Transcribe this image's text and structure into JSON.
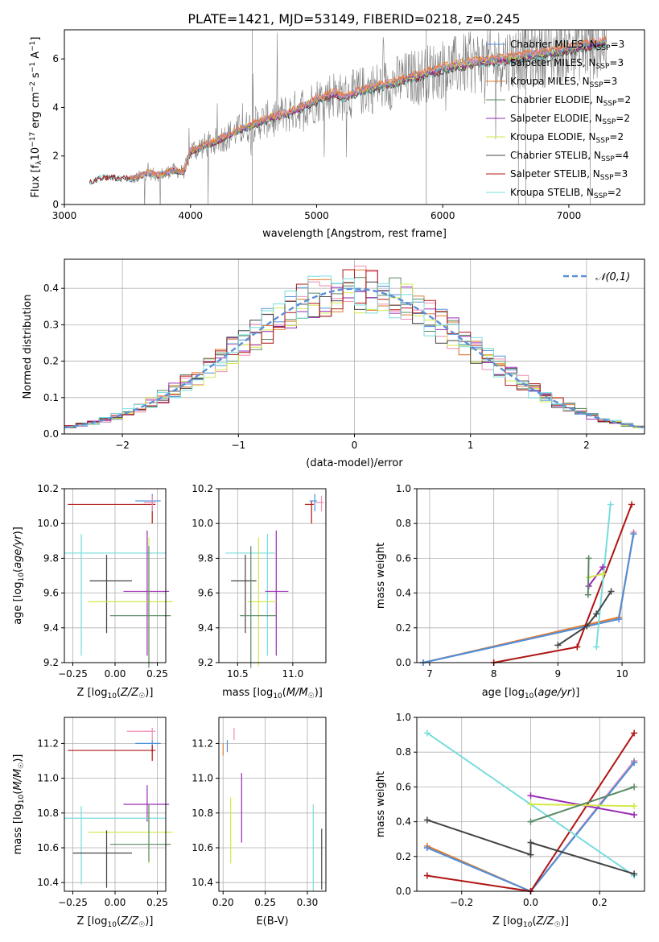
{
  "title": "PLATE=1421, MJD=53149, FIBERID=0218, z=0.245",
  "colors": {
    "chabrier_miles": "#4a90d9",
    "salpeter_miles": "#f08cb4",
    "kroupa_miles": "#e07b2e",
    "chabrier_elodie": "#5a8a64",
    "salpeter_elodie": "#9a2ab4",
    "kroupa_elodie": "#d4e84a",
    "chabrier_stelib": "#444444",
    "salpeter_stelib": "#b01414",
    "kroupa_stelib": "#78dcdc",
    "data": "#808080",
    "normal": "#5b8fd6"
  },
  "chart_data": [
    {
      "id": "spectrum",
      "type": "line",
      "xlabel": "wavelength [Angstrom, rest frame]",
      "ylabel": "Flux [f_λ 10^-17 erg cm^-2 s^-1 A^-1]",
      "xlim": [
        3000,
        7600
      ],
      "ylim": [
        0,
        7.2
      ],
      "xticks": [
        "3000",
        "4000",
        "5000",
        "6000",
        "7000"
      ],
      "yticks": [
        "0",
        "2",
        "4",
        "6"
      ],
      "legend_position": "upper right",
      "legend": [
        {
          "key": "chabrier_miles",
          "label": "Chabrier MILES, N",
          "sub": "SSP",
          "suffix": "=3"
        },
        {
          "key": "salpeter_miles",
          "label": "Salpeter MILES, N",
          "sub": "SSP",
          "suffix": "=3"
        },
        {
          "key": "kroupa_miles",
          "label": "Kroupa MILES, N",
          "sub": "SSP",
          "suffix": "=3"
        },
        {
          "key": "chabrier_elodie",
          "label": "Chabrier ELODIE, N",
          "sub": "SSP",
          "suffix": "=2"
        },
        {
          "key": "salpeter_elodie",
          "label": "Salpeter ELODIE, N",
          "sub": "SSP",
          "suffix": "=2"
        },
        {
          "key": "kroupa_elodie",
          "label": "Kroupa ELODIE, N",
          "sub": "SSP",
          "suffix": "=2"
        },
        {
          "key": "chabrier_stelib",
          "label": "Chabrier STELIB, N",
          "sub": "SSP",
          "suffix": "=4"
        },
        {
          "key": "salpeter_stelib",
          "label": "Salpeter STELIB, N",
          "sub": "SSP",
          "suffix": "=3"
        },
        {
          "key": "kroupa_stelib",
          "label": "Kroupa STELIB, N",
          "sub": "SSP",
          "suffix": "=2"
        }
      ],
      "model_continuum": [
        [
          3200,
          0.9
        ],
        [
          3300,
          1.15
        ],
        [
          3450,
          1.1
        ],
        [
          3550,
          1.05
        ],
        [
          3650,
          1.3
        ],
        [
          3750,
          1.2
        ],
        [
          3850,
          1.4
        ],
        [
          3950,
          1.35
        ],
        [
          4000,
          2.2
        ],
        [
          4200,
          2.6
        ],
        [
          4400,
          3.1
        ],
        [
          4600,
          3.5
        ],
        [
          4800,
          3.8
        ],
        [
          5000,
          4.3
        ],
        [
          5150,
          4.6
        ],
        [
          5200,
          4.4
        ],
        [
          5400,
          4.75
        ],
        [
          5600,
          5.0
        ],
        [
          5800,
          5.3
        ],
        [
          6000,
          5.6
        ],
        [
          6200,
          5.8
        ],
        [
          6500,
          6.0
        ],
        [
          6800,
          6.2
        ],
        [
          7000,
          6.4
        ],
        [
          7300,
          6.7
        ]
      ],
      "data_range": [
        3520,
        7300
      ]
    },
    {
      "id": "residuals",
      "type": "histogram",
      "xlabel": "(data-model)/error",
      "ylabel": "Normed distribution",
      "xlim": [
        -2.5,
        2.5
      ],
      "ylim": [
        0,
        0.48
      ],
      "xticks": [
        "−2",
        "−1",
        "0",
        "1",
        "2"
      ],
      "yticks": [
        "0.0",
        "0.1",
        "0.2",
        "0.3",
        "0.4"
      ],
      "legend_label": "𝒩(0,1)",
      "bin_width": 0.1
    },
    {
      "id": "age_vs_Z",
      "type": "errorbar",
      "xlabel": "Z [log10(Z/Z_sun)]",
      "ylabel": "age [log10(age/yr)]",
      "xlim": [
        -0.3,
        0.3
      ],
      "ylim": [
        9.2,
        10.2
      ],
      "xticks": [
        "−0.25",
        "0.00",
        "0.25"
      ],
      "yticks": [
        "9.2",
        "9.4",
        "9.6",
        "9.8",
        "10.0",
        "10.2"
      ],
      "points": [
        {
          "key": "salpeter_stelib",
          "x": 0.22,
          "xerr": [
            0.5,
            0.02
          ],
          "y": 10.11,
          "yerr": [
            0.11,
            0.02
          ]
        },
        {
          "key": "chabrier_miles",
          "x": 0.22,
          "xerr": [
            0.1,
            0.05
          ],
          "y": 10.13,
          "yerr": [
            0.06,
            0.04
          ]
        },
        {
          "key": "salpeter_miles",
          "x": 0.22,
          "xerr": [
            0.05,
            0.02
          ],
          "y": 10.12,
          "yerr": [
            0.05,
            0.04
          ]
        },
        {
          "key": "kroupa_stelib",
          "x": -0.2,
          "xerr": [
            0.1,
            0.5
          ],
          "y": 9.83,
          "yerr": [
            0.59,
            0.11
          ]
        },
        {
          "key": "chabrier_stelib",
          "x": -0.05,
          "xerr": [
            0.1,
            0.15
          ],
          "y": 9.67,
          "yerr": [
            0.3,
            0.15
          ]
        },
        {
          "key": "salpeter_elodie",
          "x": 0.19,
          "xerr": [
            0.14,
            0.13
          ],
          "y": 9.61,
          "yerr": [
            0.37,
            0.35
          ]
        },
        {
          "key": "kroupa_elodie",
          "x": 0.2,
          "xerr": [
            0.36,
            0.14
          ],
          "y": 9.55,
          "yerr": [
            0.37,
            0.37
          ]
        },
        {
          "key": "chabrier_elodie",
          "x": 0.2,
          "xerr": [
            0.23,
            0.13
          ],
          "y": 9.47,
          "yerr": [
            0.3,
            0.4
          ]
        }
      ]
    },
    {
      "id": "age_vs_mass",
      "type": "errorbar",
      "xlabel": "mass [log10(M/M_sun)]",
      "ylabel": "",
      "xlim": [
        10.33,
        11.3
      ],
      "ylim": [
        9.2,
        10.2
      ],
      "xticks": [
        "10.5",
        "11.0"
      ],
      "yticks": [
        "9.2",
        "9.4",
        "9.6",
        "9.8",
        "10.0",
        "10.2"
      ],
      "points": [
        {
          "key": "salpeter_stelib",
          "x": 11.17,
          "xerr": [
            0.06,
            0.02
          ],
          "y": 10.11,
          "yerr": [
            0.11,
            0.02
          ]
        },
        {
          "key": "chabrier_miles",
          "x": 11.2,
          "xerr": [
            0.05,
            0.02
          ],
          "y": 10.13,
          "yerr": [
            0.06,
            0.04
          ]
        },
        {
          "key": "salpeter_miles",
          "x": 11.26,
          "xerr": [
            0.05,
            0.02
          ],
          "y": 10.12,
          "yerr": [
            0.05,
            0.04
          ]
        },
        {
          "key": "kroupa_stelib",
          "x": 10.77,
          "xerr": [
            0.38,
            0.07
          ],
          "y": 9.83,
          "yerr": [
            0.59,
            0.11
          ]
        },
        {
          "key": "chabrier_stelib",
          "x": 10.57,
          "xerr": [
            0.13,
            0.1
          ],
          "y": 9.67,
          "yerr": [
            0.3,
            0.15
          ]
        },
        {
          "key": "salpeter_elodie",
          "x": 10.85,
          "xerr": [
            0.1,
            0.11
          ],
          "y": 9.61,
          "yerr": [
            0.37,
            0.35
          ]
        },
        {
          "key": "kroupa_elodie",
          "x": 10.69,
          "xerr": [
            0.1,
            0.16
          ],
          "y": 9.55,
          "yerr": [
            0.37,
            0.37
          ]
        },
        {
          "key": "chabrier_elodie",
          "x": 10.62,
          "xerr": [
            0.1,
            0.23
          ],
          "y": 9.47,
          "yerr": [
            0.3,
            0.4
          ]
        }
      ]
    },
    {
      "id": "weight_vs_age",
      "type": "line",
      "xlabel": "age [log10(age/yr)]",
      "ylabel": "mass weight",
      "xlim": [
        6.8,
        10.35
      ],
      "ylim": [
        0,
        1.0
      ],
      "xticks": [
        "7",
        "8",
        "9",
        "10"
      ],
      "yticks": [
        "0.0",
        "0.2",
        "0.4",
        "0.6",
        "0.8",
        "1.0"
      ],
      "series": [
        {
          "key": "kroupa_miles",
          "x": [
            6.9,
            9.95,
            10.18
          ],
          "y": [
            0.0,
            0.26,
            0.74
          ]
        },
        {
          "key": "salpeter_miles",
          "x": [
            6.9,
            9.95,
            10.18
          ],
          "y": [
            0.0,
            0.25,
            0.75
          ]
        },
        {
          "key": "chabrier_miles",
          "x": [
            6.9,
            9.95,
            10.18
          ],
          "y": [
            0.0,
            0.25,
            0.74
          ]
        },
        {
          "key": "salpeter_stelib",
          "x": [
            8.0,
            9.3,
            10.15
          ],
          "y": [
            0.0,
            0.09,
            0.91
          ]
        },
        {
          "key": "kroupa_stelib",
          "x": [
            9.6,
            9.82
          ],
          "y": [
            0.09,
            0.91
          ]
        },
        {
          "key": "chabrier_stelib",
          "x": [
            9.0,
            9.45,
            9.6,
            9.83
          ],
          "y": [
            0.1,
            0.21,
            0.28,
            0.41
          ]
        },
        {
          "key": "salpeter_elodie",
          "x": [
            9.48,
            9.7
          ],
          "y": [
            0.44,
            0.55
          ]
        },
        {
          "key": "kroupa_elodie",
          "x": [
            9.48,
            9.7
          ],
          "y": [
            0.49,
            0.51
          ]
        },
        {
          "key": "chabrier_elodie",
          "x": [
            9.47,
            9.48
          ],
          "y": [
            0.39,
            0.6
          ]
        }
      ]
    },
    {
      "id": "mass_vs_Z",
      "type": "errorbar",
      "xlabel": "Z [log10(Z/Z_sun)]",
      "ylabel": "mass [log10(M/M_sun)]",
      "xlim": [
        -0.3,
        0.3
      ],
      "ylim": [
        10.35,
        11.35
      ],
      "xticks": [
        "−0.25",
        "0.00",
        "0.25"
      ],
      "yticks": [
        "10.4",
        "10.6",
        "10.8",
        "11.0",
        "11.2"
      ],
      "points": [
        {
          "key": "salpeter_miles",
          "x": 0.22,
          "xerr": [
            0.15,
            0.02
          ],
          "y": 11.27,
          "yerr": [
            0.05,
            0.02
          ]
        },
        {
          "key": "chabrier_miles",
          "x": 0.22,
          "xerr": [
            0.1,
            0.05
          ],
          "y": 11.2,
          "yerr": [
            0.05,
            0.02
          ]
        },
        {
          "key": "salpeter_stelib",
          "x": 0.22,
          "xerr": [
            0.5,
            0.02
          ],
          "y": 11.16,
          "yerr": [
            0.06,
            0.03
          ]
        },
        {
          "key": "salpeter_elodie",
          "x": 0.19,
          "xerr": [
            0.14,
            0.13
          ],
          "y": 10.85,
          "yerr": [
            0.1,
            0.11
          ]
        },
        {
          "key": "kroupa_stelib",
          "x": -0.2,
          "xerr": [
            0.1,
            0.5
          ],
          "y": 10.77,
          "yerr": [
            0.38,
            0.07
          ]
        },
        {
          "key": "kroupa_elodie",
          "x": 0.2,
          "xerr": [
            0.36,
            0.14
          ],
          "y": 10.69,
          "yerr": [
            0.18,
            0.16
          ]
        },
        {
          "key": "chabrier_elodie",
          "x": 0.2,
          "xerr": [
            0.23,
            0.13
          ],
          "y": 10.62,
          "yerr": [
            0.1,
            0.23
          ]
        },
        {
          "key": "chabrier_stelib",
          "x": -0.05,
          "xerr": [
            0.2,
            0.15
          ],
          "y": 10.57,
          "yerr": [
            0.2,
            0.13
          ]
        }
      ]
    },
    {
      "id": "mass_vs_ebv",
      "type": "errorbar",
      "xlabel": "E(B-V)",
      "ylabel": "",
      "xlim": [
        0.195,
        0.322
      ],
      "ylim": [
        10.35,
        11.35
      ],
      "xticks": [
        "0.20",
        "0.25",
        "0.30"
      ],
      "yticks": [
        "10.4",
        "10.6",
        "10.8",
        "11.0",
        "11.2"
      ],
      "points": [
        {
          "key": "chabrier_miles",
          "x": 0.205,
          "y": 11.2,
          "yerr": [
            0.05,
            0.02
          ]
        },
        {
          "key": "salpeter_miles",
          "x": 0.213,
          "y": 11.27,
          "yerr": [
            0.05,
            0.02
          ]
        },
        {
          "key": "kroupa_miles",
          "x": 0.2,
          "y": 11.17,
          "yerr": [
            0.04,
            0.03
          ]
        },
        {
          "key": "salpeter_elodie",
          "x": 0.222,
          "y": 10.85,
          "yerr": [
            0.22,
            0.18
          ]
        },
        {
          "key": "kroupa_elodie",
          "x": 0.209,
          "y": 10.69,
          "yerr": [
            0.18,
            0.2
          ]
        },
        {
          "key": "kroupa_stelib",
          "x": 0.307,
          "y": 10.6,
          "yerr": [
            0.25,
            0.25
          ]
        },
        {
          "key": "chabrier_stelib",
          "x": 0.317,
          "y": 10.56,
          "yerr": [
            0.2,
            0.15
          ]
        }
      ]
    },
    {
      "id": "weight_vs_Z",
      "type": "line",
      "xlabel": "Z [log10(Z/Z_sun)]",
      "ylabel": "mass weight",
      "xlim": [
        -0.33,
        0.33
      ],
      "ylim": [
        0,
        1.0
      ],
      "xticks": [
        "−0.2",
        "0.0",
        "0.2"
      ],
      "yticks": [
        "0.0",
        "0.2",
        "0.4",
        "0.6",
        "0.8",
        "1.0"
      ],
      "series": [
        {
          "key": "kroupa_miles",
          "x": [
            -0.3,
            0.0,
            0.3
          ],
          "y": [
            0.26,
            0.0,
            0.74
          ]
        },
        {
          "key": "salpeter_miles",
          "x": [
            -0.3,
            0.0,
            0.3
          ],
          "y": [
            0.25,
            0.0,
            0.75
          ]
        },
        {
          "key": "chabrier_miles",
          "x": [
            -0.3,
            0.0,
            0.3
          ],
          "y": [
            0.25,
            0.0,
            0.74
          ]
        },
        {
          "key": "salpeter_stelib",
          "x": [
            -0.3,
            0.0,
            0.3
          ],
          "y": [
            0.09,
            0.0,
            0.91
          ]
        },
        {
          "key": "kroupa_stelib",
          "x": [
            -0.3,
            0.3
          ],
          "y": [
            0.91,
            0.09
          ]
        },
        {
          "key": "chabrier_stelib",
          "x": [
            -0.3,
            0.0,
            0.0,
            0.3
          ],
          "y": [
            0.41,
            0.21,
            0.28,
            0.1
          ]
        },
        {
          "key": "salpeter_elodie",
          "x": [
            0.0,
            0.3
          ],
          "y": [
            0.55,
            0.44
          ]
        },
        {
          "key": "kroupa_elodie",
          "x": [
            0.0,
            0.3
          ],
          "y": [
            0.5,
            0.49
          ]
        },
        {
          "key": "chabrier_elodie",
          "x": [
            0.0,
            0.3
          ],
          "y": [
            0.4,
            0.6
          ]
        }
      ]
    }
  ]
}
